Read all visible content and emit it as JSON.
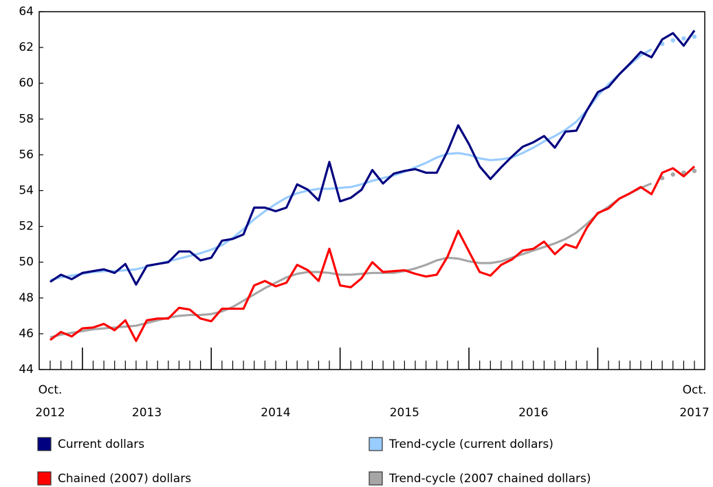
{
  "chart_data": {
    "type": "line",
    "categories": [
      "Oct. 2012",
      null,
      null,
      null,
      null,
      null,
      null,
      null,
      null,
      "2013",
      null,
      null,
      null,
      null,
      null,
      null,
      null,
      null,
      null,
      null,
      null,
      "2014",
      null,
      null,
      null,
      null,
      null,
      null,
      null,
      null,
      null,
      null,
      null,
      "2015",
      null,
      null,
      null,
      null,
      null,
      null,
      null,
      null,
      null,
      null,
      null,
      "2016",
      null,
      null,
      null,
      null,
      null,
      null,
      null,
      null,
      null,
      null,
      null,
      null,
      null,
      null,
      "Oct. 2017"
    ],
    "ylim": [
      44,
      64
    ],
    "yticks": [
      44,
      46,
      48,
      50,
      52,
      54,
      56,
      58,
      60,
      62,
      64
    ],
    "series": [
      {
        "name": "Current dollars",
        "color": "#000080",
        "values": [
          48.9,
          49.3,
          49.05,
          49.4,
          49.5,
          49.6,
          49.4,
          49.9,
          48.75,
          49.8,
          49.9,
          50.0,
          50.6,
          50.6,
          50.1,
          50.25,
          51.2,
          51.3,
          51.55,
          53.05,
          53.05,
          52.85,
          53.05,
          54.35,
          54.05,
          53.45,
          55.6,
          53.4,
          53.6,
          54.05,
          55.15,
          54.4,
          54.95,
          55.1,
          55.2,
          55.0,
          55.0,
          56.2,
          57.65,
          56.6,
          55.35,
          54.65,
          55.3,
          55.9,
          56.45,
          56.7,
          57.05,
          56.4,
          57.3,
          57.35,
          58.5,
          59.5,
          59.8,
          60.5,
          61.1,
          61.75,
          61.45,
          62.45,
          62.8,
          62.1,
          62.95
        ]
      },
      {
        "name": "Trend-cycle (current dollars)",
        "color": "#99ccff",
        "dotted_from_index": 57,
        "values": [
          49.0,
          49.15,
          49.25,
          49.35,
          49.45,
          49.5,
          49.5,
          49.55,
          49.6,
          49.75,
          49.9,
          50.05,
          50.2,
          50.35,
          50.5,
          50.7,
          50.95,
          51.35,
          51.85,
          52.4,
          52.85,
          53.25,
          53.6,
          53.85,
          54.0,
          54.1,
          54.1,
          54.15,
          54.2,
          54.35,
          54.55,
          54.7,
          54.85,
          55.05,
          55.3,
          55.55,
          55.85,
          56.05,
          56.1,
          56.0,
          55.8,
          55.7,
          55.75,
          55.85,
          56.1,
          56.4,
          56.75,
          57.05,
          57.4,
          57.85,
          58.5,
          59.3,
          59.95,
          60.5,
          61.05,
          61.55,
          61.9,
          62.2,
          62.4,
          62.5,
          62.6
        ]
      },
      {
        "name": "Chained (2007) dollars",
        "color": "#ff0000",
        "values": [
          45.65,
          46.1,
          45.85,
          46.3,
          46.35,
          46.55,
          46.2,
          46.75,
          45.6,
          46.75,
          46.85,
          46.85,
          47.45,
          47.35,
          46.85,
          46.7,
          47.4,
          47.4,
          47.4,
          48.7,
          48.95,
          48.65,
          48.85,
          49.85,
          49.55,
          48.95,
          50.75,
          48.7,
          48.6,
          49.1,
          50.0,
          49.45,
          49.5,
          49.55,
          49.35,
          49.2,
          49.3,
          50.3,
          51.75,
          50.6,
          49.45,
          49.25,
          49.85,
          50.15,
          50.65,
          50.75,
          51.15,
          50.45,
          51.0,
          50.8,
          51.95,
          52.75,
          53.0,
          53.55,
          53.85,
          54.2,
          53.8,
          55.0,
          55.25,
          54.8,
          55.35
        ]
      },
      {
        "name": "Trend-cycle (2007 chained dollars)",
        "color": "#a6a6a6",
        "dotted_from_index": 57,
        "values": [
          45.8,
          45.95,
          46.05,
          46.15,
          46.25,
          46.3,
          46.35,
          46.4,
          46.45,
          46.6,
          46.75,
          46.9,
          47.0,
          47.05,
          47.05,
          47.1,
          47.25,
          47.5,
          47.85,
          48.2,
          48.55,
          48.85,
          49.15,
          49.35,
          49.45,
          49.45,
          49.4,
          49.3,
          49.3,
          49.35,
          49.4,
          49.4,
          49.4,
          49.5,
          49.65,
          49.85,
          50.1,
          50.25,
          50.2,
          50.05,
          49.95,
          49.95,
          50.05,
          50.25,
          50.45,
          50.65,
          50.85,
          51.05,
          51.3,
          51.65,
          52.15,
          52.7,
          53.1,
          53.55,
          53.85,
          54.15,
          54.4,
          54.7,
          54.9,
          55.0,
          55.1
        ]
      }
    ]
  }
}
